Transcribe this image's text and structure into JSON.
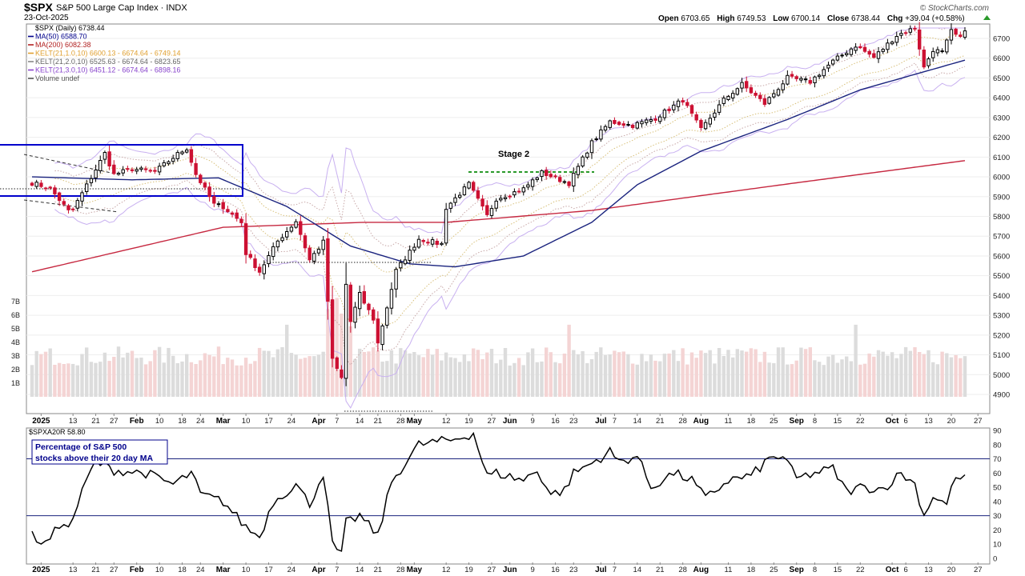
{
  "header": {
    "symbol": "$SPX",
    "name": "S&P 500 Large Cap Index",
    "exchange": "INDX",
    "date": "23-Oct-2025",
    "brand": "© StockCharts.com",
    "ohlc": {
      "open_label": "Open",
      "open": "6703.65",
      "high_label": "High",
      "high": "6749.53",
      "low_label": "Low",
      "low": "6700.14",
      "close_label": "Close",
      "close": "6738.44",
      "chg_label": "Chg",
      "chg": "+39.04 (+0.58%)"
    }
  },
  "legend": [
    {
      "text": "$SPX (Daily) 6738.44",
      "color": "#000000"
    },
    {
      "text": "MA(50) 6588.70",
      "color": "#00008b"
    },
    {
      "text": "MA(200) 6082.38",
      "color": "#b22222"
    },
    {
      "text": "KELT(21,1.0,10) 6600.13 - 6674.64 - 6749.14",
      "color": "#e0a030"
    },
    {
      "text": "KELT(21,2.0,10) 6525.63 - 6674.64 - 6823.65",
      "color": "#888888"
    },
    {
      "text": "KELT(21,3.0,10) 6451.12 - 6674.64 - 6898.16",
      "color": "#8844cc"
    },
    {
      "text": "Volume undef",
      "color": "#555555"
    }
  ],
  "annotations": {
    "stage2": "Stage 2",
    "indicator_label": "$SPXA20R 58.80",
    "indicator_note_line1": "Percentage of S&P 500",
    "indicator_note_line2": "stocks above their 20 day MA"
  },
  "colors": {
    "up": "#000000",
    "down": "#cc1133",
    "ma50": "#1a237e",
    "ma200": "#c62840",
    "kelt1": "#d8c07a",
    "kelt2": "#c8a8a8",
    "kelt3": "#c8b0f0",
    "box": "#0000cc",
    "vol_up": "#dcdcdc",
    "vol_down": "#f4d4d4",
    "stage2": "#2a9a2a"
  },
  "chart_data": [
    {
      "type": "candlestick",
      "title": "$SPX (Daily)",
      "x_range": [
        "2024-12-27",
        "2025-10-23"
      ],
      "ylim": [
        4800,
        6800
      ],
      "y_ticks": [
        4900,
        5000,
        5100,
        5200,
        5300,
        5400,
        5500,
        5600,
        5700,
        5800,
        5900,
        6000,
        6100,
        6200,
        6300,
        6400,
        6500,
        6600,
        6700
      ],
      "x_ticks": [
        "2025",
        "13",
        "21",
        "27",
        "Feb",
        "10",
        "18",
        "24",
        "Mar",
        "10",
        "17",
        "24",
        "Apr",
        "7",
        "14",
        "21",
        "28",
        "May",
        "12",
        "19",
        "27",
        "Jun",
        "9",
        "16",
        "23",
        "Jul",
        "7",
        "14",
        "21",
        "28",
        "Aug",
        "11",
        "18",
        "25",
        "Sep",
        "8",
        "15",
        "22",
        "Oct",
        "6",
        "13",
        "20",
        "27"
      ],
      "close_anchors": [
        [
          "2024-12-27",
          5970
        ],
        [
          "2025-01-03",
          5942
        ],
        [
          "2025-01-10",
          5827
        ],
        [
          "2025-01-13",
          5836
        ],
        [
          "2025-01-17",
          5997
        ],
        [
          "2025-01-23",
          6119
        ],
        [
          "2025-01-27",
          6012
        ],
        [
          "2025-01-31",
          6040
        ],
        [
          "2025-02-07",
          6026
        ],
        [
          "2025-02-14",
          6115
        ],
        [
          "2025-02-19",
          6144
        ],
        [
          "2025-02-21",
          6013
        ],
        [
          "2025-02-27",
          5861
        ],
        [
          "2025-03-03",
          5849
        ],
        [
          "2025-03-07",
          5770
        ],
        [
          "2025-03-10",
          5614
        ],
        [
          "2025-03-13",
          5521
        ],
        [
          "2025-03-19",
          5675
        ],
        [
          "2025-03-25",
          5776
        ],
        [
          "2025-03-28",
          5580
        ],
        [
          "2025-04-02",
          5670
        ],
        [
          "2025-04-04",
          5074
        ],
        [
          "2025-04-08",
          4982
        ],
        [
          "2025-04-09",
          5456
        ],
        [
          "2025-04-10",
          5268
        ],
        [
          "2025-04-14",
          5405
        ],
        [
          "2025-04-17",
          5282
        ],
        [
          "2025-04-21",
          5158
        ],
        [
          "2025-04-25",
          5525
        ],
        [
          "2025-05-02",
          5686
        ],
        [
          "2025-05-09",
          5660
        ],
        [
          "2025-05-12",
          5844
        ],
        [
          "2025-05-19",
          5963
        ],
        [
          "2025-05-23",
          5802
        ],
        [
          "2025-05-28",
          5889
        ],
        [
          "2025-06-05",
          5939
        ],
        [
          "2025-06-11",
          6022
        ],
        [
          "2025-06-20",
          5967
        ],
        [
          "2025-06-27",
          6173
        ],
        [
          "2025-07-03",
          6279
        ],
        [
          "2025-07-11",
          6260
        ],
        [
          "2025-07-18",
          6297
        ],
        [
          "2025-07-28",
          6389
        ],
        [
          "2025-08-01",
          6238
        ],
        [
          "2025-08-08",
          6389
        ],
        [
          "2025-08-14",
          6468
        ],
        [
          "2025-08-21",
          6370
        ],
        [
          "2025-08-28",
          6501
        ],
        [
          "2025-09-05",
          6481
        ],
        [
          "2025-09-12",
          6584
        ],
        [
          "2025-09-19",
          6664
        ],
        [
          "2025-09-25",
          6604
        ],
        [
          "2025-10-02",
          6715
        ],
        [
          "2025-10-08",
          6753
        ],
        [
          "2025-10-10",
          6552
        ],
        [
          "2025-10-14",
          6644
        ],
        [
          "2025-10-16",
          6629
        ],
        [
          "2025-10-20",
          6735
        ],
        [
          "2025-10-22",
          6699
        ],
        [
          "2025-10-23",
          6738
        ]
      ],
      "ma50_anchors": [
        [
          "2024-12-27",
          6000
        ],
        [
          "2025-01-31",
          5985
        ],
        [
          "2025-02-28",
          5995
        ],
        [
          "2025-03-21",
          5850
        ],
        [
          "2025-04-10",
          5650
        ],
        [
          "2025-04-30",
          5560
        ],
        [
          "2025-05-14",
          5545
        ],
        [
          "2025-06-05",
          5600
        ],
        [
          "2025-06-27",
          5770
        ],
        [
          "2025-07-14",
          5960
        ],
        [
          "2025-08-01",
          6130
        ],
        [
          "2025-08-28",
          6290
        ],
        [
          "2025-09-22",
          6440
        ],
        [
          "2025-10-23",
          6590
        ]
      ],
      "ma200_anchors": [
        [
          "2024-12-27",
          5520
        ],
        [
          "2025-03-03",
          5745
        ],
        [
          "2025-04-15",
          5770
        ],
        [
          "2025-05-12",
          5770
        ],
        [
          "2025-06-27",
          5830
        ],
        [
          "2025-08-01",
          5905
        ],
        [
          "2025-09-02",
          5970
        ],
        [
          "2025-10-23",
          6082
        ]
      ],
      "volume_axis": {
        "ticks": [
          "1B",
          "2B",
          "3B",
          "4B",
          "5B",
          "6B",
          "7B"
        ],
        "unit": "B"
      },
      "volume_note": "Volume undef"
    },
    {
      "type": "line",
      "title": "$SPXA20R",
      "series_label": "Percentage of S&P 500 stocks above their 20 day MA",
      "last_value": 58.8,
      "ylim": [
        0,
        90
      ],
      "y_ticks": [
        0,
        10,
        20,
        30,
        40,
        50,
        60,
        70,
        80,
        90
      ],
      "reference_lines": [
        30,
        70
      ],
      "anchors": [
        [
          "2024-12-27",
          16
        ],
        [
          "2025-01-02",
          10
        ],
        [
          "2025-01-08",
          27
        ],
        [
          "2025-01-10",
          20
        ],
        [
          "2025-01-16",
          55
        ],
        [
          "2025-01-21",
          68
        ],
        [
          "2025-01-27",
          62
        ],
        [
          "2025-02-05",
          60
        ],
        [
          "2025-02-13",
          52
        ],
        [
          "2025-02-20",
          60
        ],
        [
          "2025-02-24",
          45
        ],
        [
          "2025-03-03",
          40
        ],
        [
          "2025-03-10",
          22
        ],
        [
          "2025-03-13",
          15
        ],
        [
          "2025-03-18",
          40
        ],
        [
          "2025-03-25",
          52
        ],
        [
          "2025-03-28",
          38
        ],
        [
          "2025-04-02",
          60
        ],
        [
          "2025-04-04",
          10
        ],
        [
          "2025-04-08",
          2
        ],
        [
          "2025-04-09",
          25
        ],
        [
          "2025-04-14",
          30
        ],
        [
          "2025-04-21",
          16
        ],
        [
          "2025-04-24",
          54
        ],
        [
          "2025-05-02",
          80
        ],
        [
          "2025-05-08",
          82
        ],
        [
          "2025-05-13",
          83
        ],
        [
          "2025-05-20",
          88
        ],
        [
          "2025-05-23",
          58
        ],
        [
          "2025-05-28",
          60
        ],
        [
          "2025-06-05",
          55
        ],
        [
          "2025-06-10",
          62
        ],
        [
          "2025-06-13",
          45
        ],
        [
          "2025-06-19",
          48
        ],
        [
          "2025-06-23",
          60
        ],
        [
          "2025-06-27",
          67
        ],
        [
          "2025-07-03",
          75
        ],
        [
          "2025-07-08",
          68
        ],
        [
          "2025-07-14",
          72
        ],
        [
          "2025-07-17",
          50
        ],
        [
          "2025-07-24",
          60
        ],
        [
          "2025-07-30",
          55
        ],
        [
          "2025-08-04",
          42
        ],
        [
          "2025-08-11",
          55
        ],
        [
          "2025-08-18",
          58
        ],
        [
          "2025-08-22",
          70
        ],
        [
          "2025-08-27",
          72
        ],
        [
          "2025-09-02",
          56
        ],
        [
          "2025-09-08",
          60
        ],
        [
          "2025-09-12",
          63
        ],
        [
          "2025-09-17",
          47
        ],
        [
          "2025-09-22",
          50
        ],
        [
          "2025-09-29",
          49
        ],
        [
          "2025-10-03",
          60
        ],
        [
          "2025-10-08",
          52
        ],
        [
          "2025-10-10",
          30
        ],
        [
          "2025-10-14",
          44
        ],
        [
          "2025-10-17",
          38
        ],
        [
          "2025-10-21",
          59
        ],
        [
          "2025-10-22",
          53
        ],
        [
          "2025-10-23",
          58.8
        ]
      ]
    }
  ]
}
